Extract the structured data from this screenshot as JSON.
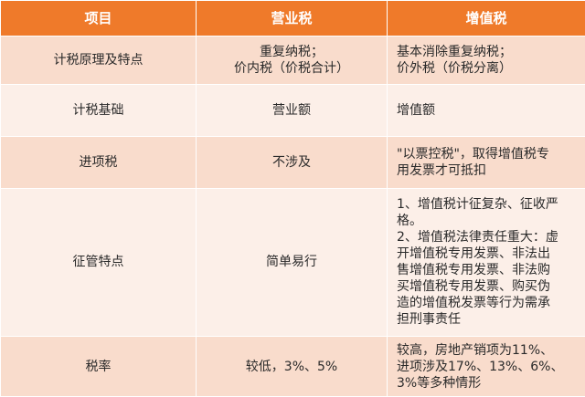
{
  "header": {
    "col1": "项目",
    "col2": "营业税",
    "col3": "增值税"
  },
  "rows": [
    {
      "label": "计税原理及特点",
      "business_tax": [
        "重复纳税；",
        "价内税（价税合计）"
      ],
      "vat": [
        "基本消除重复纳税；",
        "价外税（价税分离）"
      ]
    },
    {
      "label": "计税基础",
      "business_tax": "营业额",
      "vat": "增值额"
    },
    {
      "label": "进项税",
      "business_tax": "不涉及",
      "vat": [
        "\"以票控税\"，取得增值税专",
        "用发票才可抵扣"
      ]
    },
    {
      "label": "征管特点",
      "business_tax": "简单易行",
      "vat": [
        "1、增值税计征复杂、征收严",
        "格。",
        "2、增值税法律责任重大：虚",
        "开增值税专用发票、非法出",
        "售增值税专用发票、非法购",
        "买增值税专用发票、购买伪",
        "造的增值税发票等行为需承",
        "担刑事责任"
      ]
    },
    {
      "label": "税率",
      "business_tax": "较低，3%、5%",
      "vat": [
        "较高，房地产销项为11%、",
        "进项涉及17%、13%、6%、",
        "3%等多种情形"
      ]
    }
  ],
  "colors": {
    "header_bg": "#ef7a2a",
    "row_dark": "#f9dccc",
    "row_light": "#fcefe8"
  }
}
